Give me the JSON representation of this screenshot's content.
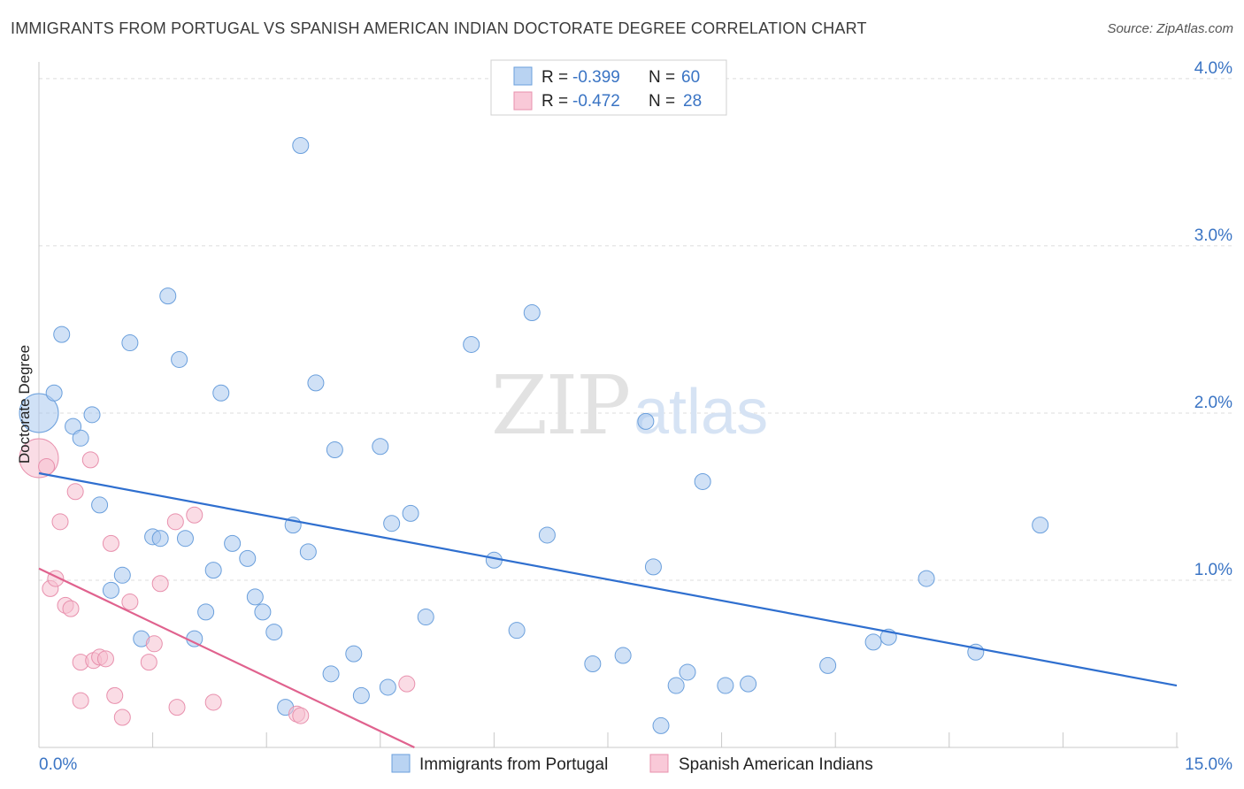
{
  "header": {
    "title": "IMMIGRANTS FROM PORTUGAL VS SPANISH AMERICAN INDIAN DOCTORATE DEGREE CORRELATION CHART",
    "source": "Source: ZipAtlas.com"
  },
  "watermark": {
    "part1": "ZIP",
    "part2": "atlas"
  },
  "chart_data": {
    "type": "scatter",
    "title": "IMMIGRANTS FROM PORTUGAL VS SPANISH AMERICAN INDIAN DOCTORATE DEGREE CORRELATION CHART",
    "xlabel": "",
    "ylabel": "Doctorate Degree",
    "xlim": [
      0,
      15
    ],
    "ylim": [
      0,
      4.1
    ],
    "x_tick_labels": {
      "min": "0.0%",
      "max": "15.0%"
    },
    "y_ticks": [
      {
        "value": 1,
        "label": "1.0%"
      },
      {
        "value": 2,
        "label": "2.0%"
      },
      {
        "value": 3,
        "label": "3.0%"
      },
      {
        "value": 4,
        "label": "4.0%"
      }
    ],
    "grid": true,
    "legend_position": "bottom-center",
    "stats_box": [
      {
        "r_label": "R =",
        "r_value": "-0.399",
        "n_label": "N =",
        "n_value": "60"
      },
      {
        "r_label": "R =",
        "r_value": "-0.472",
        "n_label": "N =",
        "n_value": "28"
      }
    ],
    "series": [
      {
        "name": "Immigrants from Portugal",
        "color": "#a9c8ee",
        "stroke": "#6a9fdc",
        "line_color": "#2f6fcf",
        "trend": {
          "x0": 0,
          "y0": 1.64,
          "x1": 15,
          "y1": 0.37
        },
        "points": [
          {
            "x": 0.0,
            "y": 2.0,
            "big": true
          },
          {
            "x": 0.2,
            "y": 2.12
          },
          {
            "x": 0.3,
            "y": 2.47
          },
          {
            "x": 0.45,
            "y": 1.92
          },
          {
            "x": 0.55,
            "y": 1.85
          },
          {
            "x": 0.7,
            "y": 1.99
          },
          {
            "x": 0.8,
            "y": 1.45
          },
          {
            "x": 0.95,
            "y": 0.94
          },
          {
            "x": 1.1,
            "y": 1.03
          },
          {
            "x": 1.2,
            "y": 2.42
          },
          {
            "x": 1.35,
            "y": 0.65
          },
          {
            "x": 1.5,
            "y": 1.26
          },
          {
            "x": 1.6,
            "y": 1.25
          },
          {
            "x": 1.7,
            "y": 2.7
          },
          {
            "x": 1.85,
            "y": 2.32
          },
          {
            "x": 1.93,
            "y": 1.25
          },
          {
            "x": 2.05,
            "y": 0.65
          },
          {
            "x": 2.2,
            "y": 0.81
          },
          {
            "x": 2.3,
            "y": 1.06
          },
          {
            "x": 2.4,
            "y": 2.12
          },
          {
            "x": 2.55,
            "y": 1.22
          },
          {
            "x": 2.75,
            "y": 1.13
          },
          {
            "x": 2.85,
            "y": 0.9
          },
          {
            "x": 2.95,
            "y": 0.81
          },
          {
            "x": 3.1,
            "y": 0.69
          },
          {
            "x": 3.25,
            "y": 0.24
          },
          {
            "x": 3.35,
            "y": 1.33
          },
          {
            "x": 3.45,
            "y": 3.6
          },
          {
            "x": 3.55,
            "y": 1.17
          },
          {
            "x": 3.65,
            "y": 2.18
          },
          {
            "x": 3.85,
            "y": 0.44
          },
          {
            "x": 3.9,
            "y": 1.78
          },
          {
            "x": 4.15,
            "y": 0.56
          },
          {
            "x": 4.25,
            "y": 0.31
          },
          {
            "x": 4.5,
            "y": 1.8
          },
          {
            "x": 4.6,
            "y": 0.36
          },
          {
            "x": 4.65,
            "y": 1.34
          },
          {
            "x": 4.9,
            "y": 1.4
          },
          {
            "x": 5.1,
            "y": 0.78
          },
          {
            "x": 5.7,
            "y": 2.41
          },
          {
            "x": 6.0,
            "y": 1.12
          },
          {
            "x": 6.3,
            "y": 0.7
          },
          {
            "x": 6.5,
            "y": 2.6
          },
          {
            "x": 6.7,
            "y": 1.27
          },
          {
            "x": 7.3,
            "y": 0.5
          },
          {
            "x": 7.7,
            "y": 0.55
          },
          {
            "x": 8.0,
            "y": 1.95
          },
          {
            "x": 8.1,
            "y": 1.08
          },
          {
            "x": 8.2,
            "y": 0.13
          },
          {
            "x": 8.4,
            "y": 0.37
          },
          {
            "x": 8.55,
            "y": 0.45
          },
          {
            "x": 8.75,
            "y": 1.59
          },
          {
            "x": 9.05,
            "y": 0.37
          },
          {
            "x": 9.35,
            "y": 0.38
          },
          {
            "x": 10.4,
            "y": 0.49
          },
          {
            "x": 11.0,
            "y": 0.63
          },
          {
            "x": 11.2,
            "y": 0.66
          },
          {
            "x": 11.7,
            "y": 1.01
          },
          {
            "x": 12.35,
            "y": 0.57
          },
          {
            "x": 13.2,
            "y": 1.33
          }
        ]
      },
      {
        "name": "Spanish American Indians",
        "color": "#f5bfd0",
        "stroke": "#e890ad",
        "line_color": "#e0628e",
        "trend": {
          "x0": 0,
          "y0": 1.07,
          "x1": 4.95,
          "y1": 0.0
        },
        "points": [
          {
            "x": 0.0,
            "y": 1.73,
            "big": true
          },
          {
            "x": 0.1,
            "y": 1.68
          },
          {
            "x": 0.15,
            "y": 0.95
          },
          {
            "x": 0.22,
            "y": 1.01
          },
          {
            "x": 0.28,
            "y": 1.35
          },
          {
            "x": 0.35,
            "y": 0.85
          },
          {
            "x": 0.42,
            "y": 0.83
          },
          {
            "x": 0.48,
            "y": 1.53
          },
          {
            "x": 0.55,
            "y": 0.51
          },
          {
            "x": 0.55,
            "y": 0.28
          },
          {
            "x": 0.68,
            "y": 1.72
          },
          {
            "x": 0.72,
            "y": 0.52
          },
          {
            "x": 0.8,
            "y": 0.54
          },
          {
            "x": 0.88,
            "y": 0.53
          },
          {
            "x": 0.95,
            "y": 1.22
          },
          {
            "x": 1.0,
            "y": 0.31
          },
          {
            "x": 1.1,
            "y": 0.18
          },
          {
            "x": 1.2,
            "y": 0.87
          },
          {
            "x": 1.45,
            "y": 0.51
          },
          {
            "x": 1.52,
            "y": 0.62
          },
          {
            "x": 1.6,
            "y": 0.98
          },
          {
            "x": 1.8,
            "y": 1.35
          },
          {
            "x": 1.82,
            "y": 0.24
          },
          {
            "x": 2.05,
            "y": 1.39
          },
          {
            "x": 2.3,
            "y": 0.27
          },
          {
            "x": 3.4,
            "y": 0.2
          },
          {
            "x": 3.45,
            "y": 0.19
          },
          {
            "x": 4.85,
            "y": 0.38
          }
        ]
      }
    ]
  }
}
